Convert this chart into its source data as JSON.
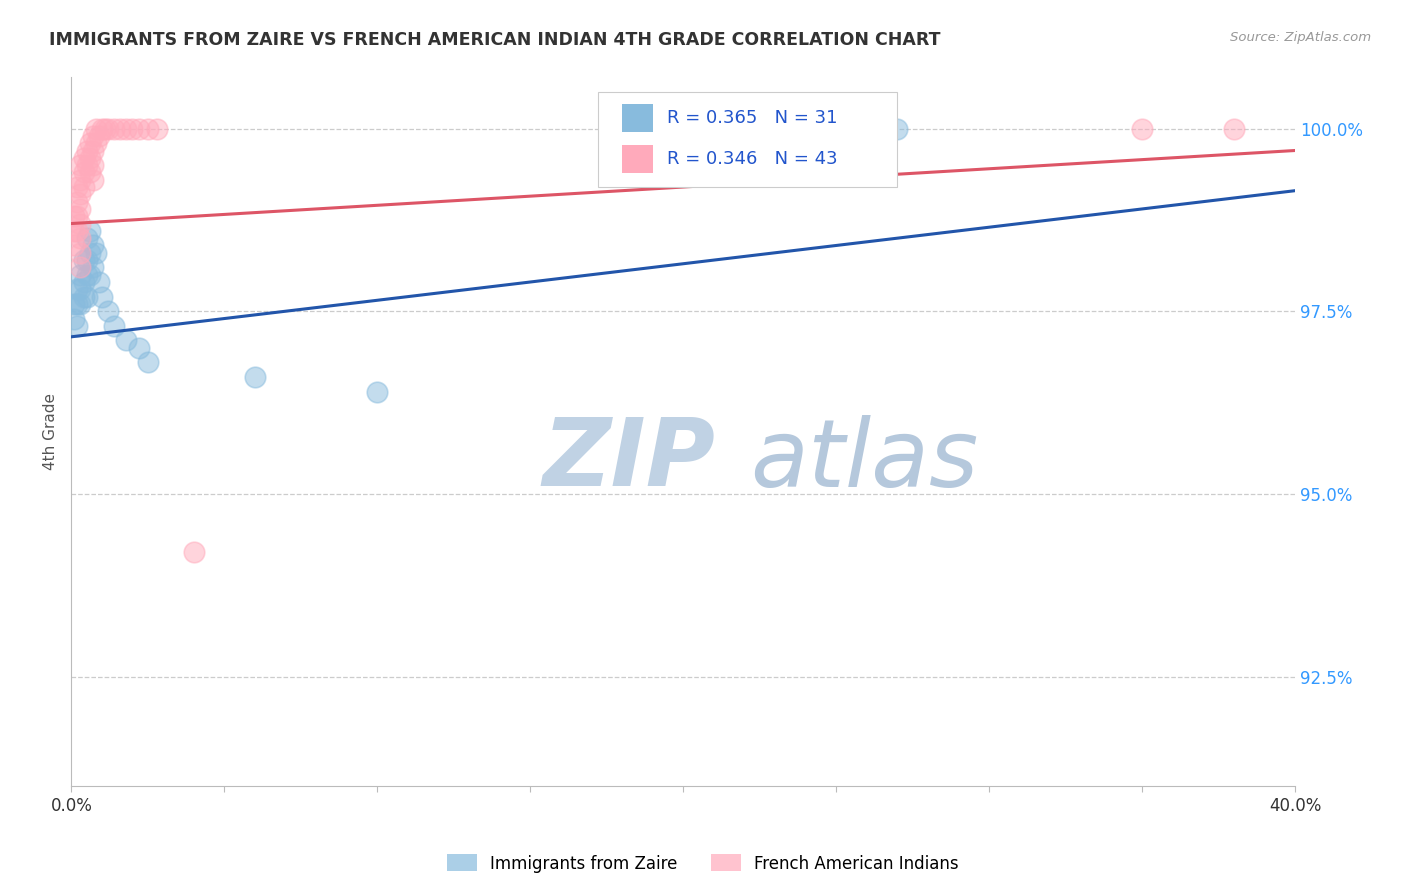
{
  "title": "IMMIGRANTS FROM ZAIRE VS FRENCH AMERICAN INDIAN 4TH GRADE CORRELATION CHART",
  "source": "Source: ZipAtlas.com",
  "ylabel": "4th Grade",
  "ylabel_right_labels": [
    "100.0%",
    "97.5%",
    "95.0%",
    "92.5%"
  ],
  "ylabel_right_values": [
    1.0,
    0.975,
    0.95,
    0.925
  ],
  "xmin": 0.0,
  "xmax": 0.4,
  "ymin": 0.91,
  "ymax": 1.007,
  "legend_blue_label": "Immigrants from Zaire",
  "legend_pink_label": "French American Indians",
  "R_blue": 0.365,
  "N_blue": 31,
  "R_pink": 0.346,
  "N_pink": 43,
  "color_blue": "#88BBDD",
  "color_pink": "#FFAABB",
  "color_blue_line": "#2255AA",
  "color_pink_line": "#DD5566",
  "legend_text_color": "#2255CC",
  "watermark_zip_color": "#C5D5E5",
  "watermark_atlas_color": "#B8CCE0",
  "title_color": "#333333",
  "source_color": "#999999",
  "blue_points_x": [
    0.001,
    0.001,
    0.002,
    0.002,
    0.002,
    0.003,
    0.003,
    0.003,
    0.004,
    0.004,
    0.004,
    0.005,
    0.005,
    0.005,
    0.005,
    0.006,
    0.006,
    0.006,
    0.007,
    0.007,
    0.008,
    0.009,
    0.01,
    0.012,
    0.014,
    0.018,
    0.022,
    0.025,
    0.06,
    0.1,
    0.27
  ],
  "blue_points_y": [
    0.976,
    0.974,
    0.978,
    0.976,
    0.973,
    0.98,
    0.978,
    0.976,
    0.982,
    0.979,
    0.977,
    0.985,
    0.982,
    0.98,
    0.977,
    0.986,
    0.983,
    0.98,
    0.984,
    0.981,
    0.983,
    0.979,
    0.977,
    0.975,
    0.973,
    0.971,
    0.97,
    0.968,
    0.966,
    0.964,
    1.0
  ],
  "pink_points_x": [
    0.001,
    0.001,
    0.001,
    0.002,
    0.002,
    0.002,
    0.002,
    0.003,
    0.003,
    0.003,
    0.003,
    0.003,
    0.003,
    0.003,
    0.003,
    0.004,
    0.004,
    0.004,
    0.005,
    0.005,
    0.006,
    0.006,
    0.006,
    0.007,
    0.007,
    0.007,
    0.007,
    0.008,
    0.008,
    0.009,
    0.01,
    0.011,
    0.012,
    0.014,
    0.016,
    0.018,
    0.02,
    0.022,
    0.025,
    0.028,
    0.04,
    0.35,
    0.38
  ],
  "pink_points_y": [
    0.988,
    0.986,
    0.984,
    0.992,
    0.99,
    0.988,
    0.986,
    0.995,
    0.993,
    0.991,
    0.989,
    0.987,
    0.985,
    0.983,
    0.981,
    0.996,
    0.994,
    0.992,
    0.997,
    0.995,
    0.998,
    0.996,
    0.994,
    0.999,
    0.997,
    0.995,
    0.993,
    1.0,
    0.998,
    0.999,
    1.0,
    1.0,
    1.0,
    1.0,
    1.0,
    1.0,
    1.0,
    1.0,
    1.0,
    1.0,
    0.942,
    1.0,
    1.0
  ],
  "blue_line_x0": 0.0,
  "blue_line_y0": 0.9715,
  "blue_line_x1": 0.4,
  "blue_line_y1": 0.9915,
  "pink_line_x0": 0.0,
  "pink_line_y0": 0.987,
  "pink_line_x1": 0.4,
  "pink_line_y1": 0.997
}
